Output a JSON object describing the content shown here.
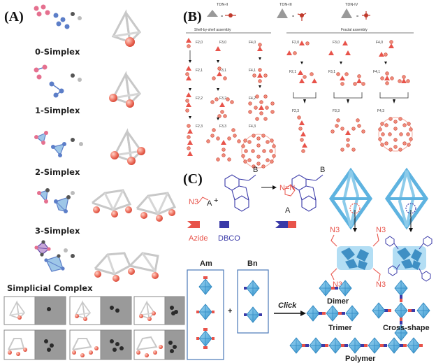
{
  "panelA": {
    "letter": "(A)",
    "labels": [
      "0-Simplex",
      "1-Simplex",
      "2-Simplex",
      "3-Simplex"
    ],
    "complex_label": "Simplicial Complex"
  },
  "panelB": {
    "letter": "(B)",
    "tdn": [
      "TDN-II",
      "TDN-III",
      "TDN-IV"
    ],
    "left_title": "Shell-by-shell assembly",
    "right_title": "Fractal assembly",
    "left_cols": [
      [
        "F2,0",
        "F2,1",
        "F2,2",
        "F2,3"
      ],
      [
        "F3,0",
        "F3,1",
        "F3,2",
        "F3,3"
      ],
      [
        "F4,0",
        "F4,1",
        "F4,2",
        "F4,3"
      ]
    ],
    "right_top": [
      "F2,0",
      "F3,0",
      "F4,0"
    ],
    "right_mid": [
      "F2,1",
      "F3,1",
      "F4,1"
    ],
    "right_bot": [
      "F2,3",
      "F3,3",
      "F4,3"
    ]
  },
  "panelC": {
    "letter": "(C)",
    "azide_n3": "N3",
    "a_letter": "A",
    "b_letter": "B",
    "triazole": "N=N",
    "azide_label": "Azide",
    "dbco_label": "DBCO",
    "n3_tags": [
      "N3",
      "N3",
      "N3",
      "N3"
    ],
    "am_label": "Am",
    "bn_label": "Bn",
    "plus": "+",
    "click": "Click",
    "dimer": "Dimer",
    "trimer": "Trimer",
    "cross": "Cross-shape",
    "polymer": "Polymer"
  },
  "colors": {
    "red": "#e8534a",
    "blue": "#3a3aa8",
    "octa": "#5eb3e0",
    "gray": "#bdbdbd"
  }
}
